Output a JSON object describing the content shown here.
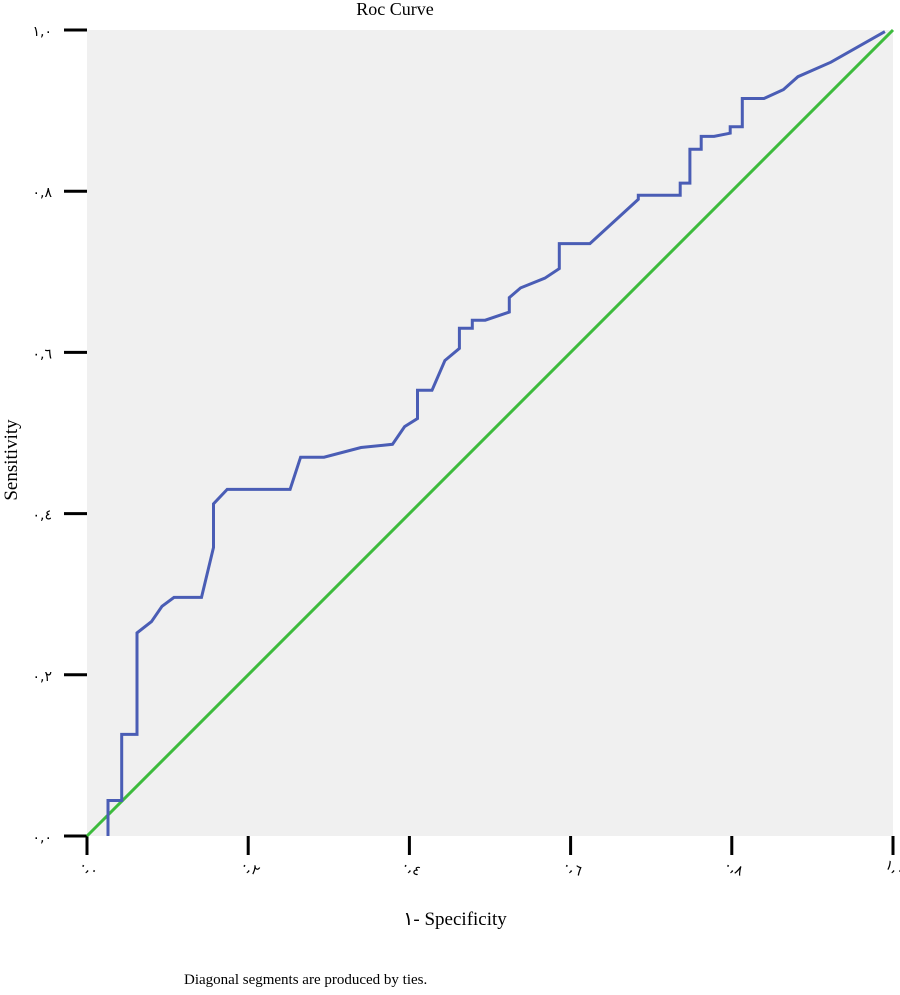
{
  "chart_data": {
    "type": "line",
    "title": "Roc Curve",
    "xlabel": "١- Specificity",
    "ylabel": "Sensitivity",
    "xlim": [
      0,
      1
    ],
    "ylim": [
      0,
      1
    ],
    "x_ticks": [
      0,
      0.2,
      0.4,
      0.6,
      0.8,
      1.0
    ],
    "y_ticks": [
      0,
      0.2,
      0.4,
      0.6,
      0.8,
      1.0
    ],
    "x_tick_labels": [
      "٠,٠",
      "٠,٢",
      "٠,٤",
      "٠,٦",
      "٠,٨",
      "١,٠"
    ],
    "y_tick_labels": [
      "٠,٠",
      "٠,٢",
      "٠,٤",
      "٠,٦",
      "٠,٨",
      "١,٠"
    ],
    "grid": false,
    "background": "#f0f0f0",
    "series": [
      {
        "color": "#4a5db5",
        "x": [
          0.026,
          0.026,
          0.043,
          0.043,
          0.062,
          0.062,
          0.08,
          0.093,
          0.108,
          0.142,
          0.157,
          0.157,
          0.174,
          0.252,
          0.265,
          0.294,
          0.34,
          0.379,
          0.394,
          0.41,
          0.41,
          0.428,
          0.444,
          0.462,
          0.462,
          0.478,
          0.478,
          0.494,
          0.524,
          0.524,
          0.538,
          0.568,
          0.586,
          0.586,
          0.624,
          0.684,
          0.684,
          0.736,
          0.736,
          0.748,
          0.748,
          0.762,
          0.762,
          0.778,
          0.798,
          0.798,
          0.813,
          0.813,
          0.84,
          0.864,
          0.864,
          0.882,
          0.882,
          0.923,
          0.923,
          0.99
        ],
        "y": [
          0.0,
          0.044,
          0.044,
          0.126,
          0.126,
          0.252,
          0.266,
          0.285,
          0.296,
          0.296,
          0.358,
          0.412,
          0.43,
          0.43,
          0.47,
          0.47,
          0.482,
          0.486,
          0.508,
          0.518,
          0.553,
          0.553,
          0.59,
          0.605,
          0.63,
          0.63,
          0.64,
          0.64,
          0.65,
          0.668,
          0.68,
          0.692,
          0.704,
          0.735,
          0.735,
          0.79,
          0.795,
          0.795,
          0.81,
          0.81,
          0.852,
          0.852,
          0.868,
          0.868,
          0.872,
          0.88,
          0.88,
          0.915,
          0.915,
          0.926,
          0.926,
          0.942,
          0.942,
          0.96,
          0.96,
          0.998
        ]
      },
      {
        "color": "#3dbb3d",
        "x": [
          0,
          1
        ],
        "y": [
          0,
          1
        ]
      }
    ],
    "footnote": "Diagonal segments are produced by ties."
  }
}
